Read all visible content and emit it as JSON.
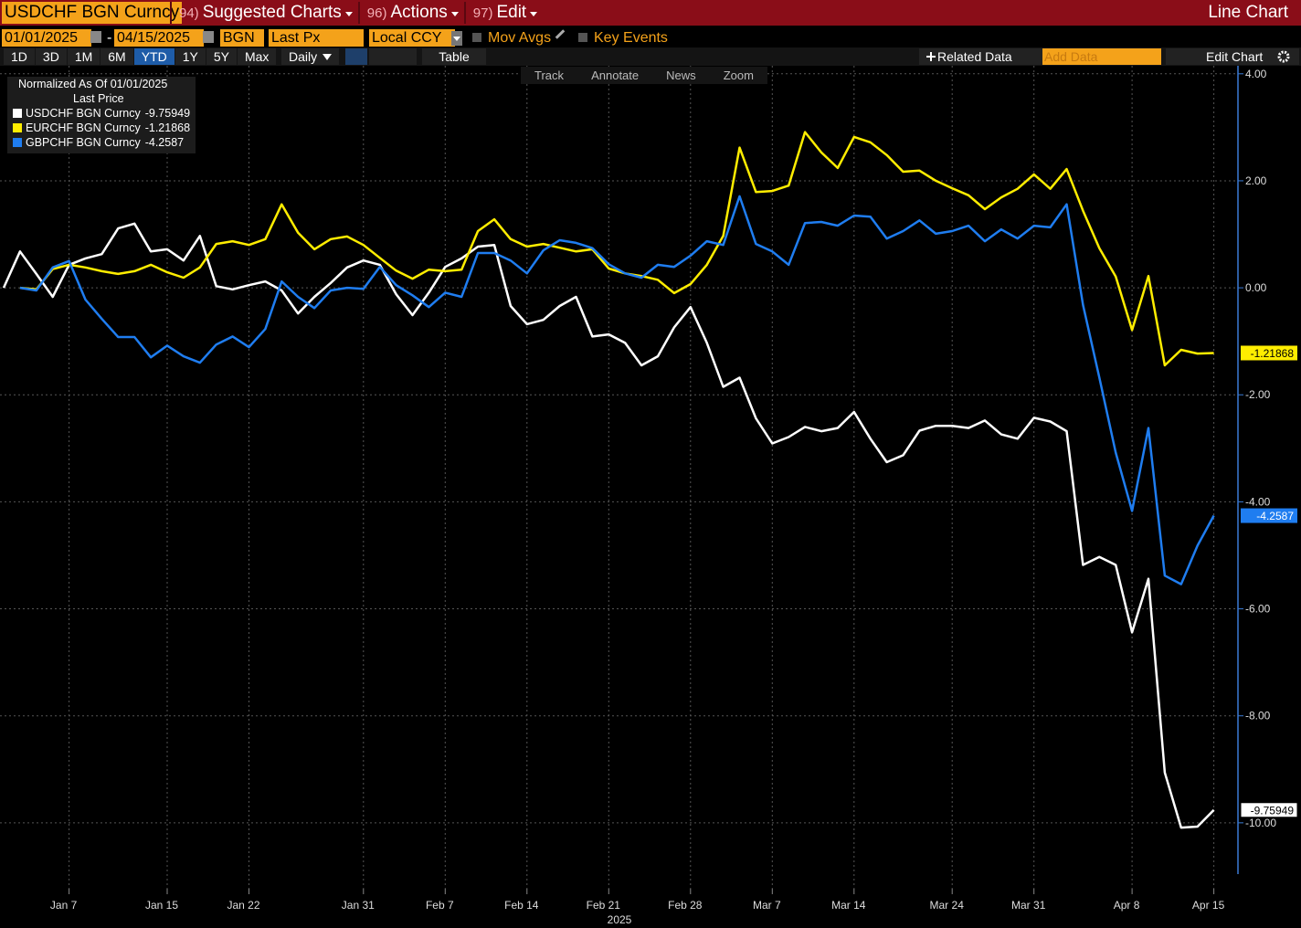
{
  "header": {
    "security": "USDCHF BGN Curncy",
    "menus": [
      {
        "key": "94)",
        "label": "Suggested Charts"
      },
      {
        "key": "96)",
        "label": "Actions"
      },
      {
        "key": "97)",
        "label": "Edit"
      }
    ],
    "view": "Line Chart"
  },
  "settings": {
    "start_date": "01/01/2025",
    "separator": "-",
    "end_date": "04/15/2025",
    "source": "BGN",
    "field": "Last Px",
    "currency": "Local CCY",
    "options": [
      "Mov Avgs",
      "Key Events"
    ]
  },
  "toolbar": {
    "periods": [
      "1D",
      "3D",
      "1M",
      "6M",
      "YTD",
      "1Y",
      "5Y",
      "Max"
    ],
    "active_period": 4,
    "frequency": "Daily",
    "table": "Table",
    "related": "Related Data",
    "add_data": "Add Data",
    "edit": "Edit Chart"
  },
  "chart_tools": [
    "Track",
    "Annotate",
    "News",
    "Zoom"
  ],
  "chart_data": {
    "type": "line",
    "legend_title": "Normalized As Of 01/01/2025",
    "legend_subtitle": "Last Price",
    "xlabel": "2025",
    "categories": [
      "2025-01-01",
      "2025-01-02",
      "2025-01-03",
      "2025-01-06",
      "2025-01-07",
      "2025-01-08",
      "2025-01-09",
      "2025-01-10",
      "2025-01-13",
      "2025-01-14",
      "2025-01-15",
      "2025-01-16",
      "2025-01-17",
      "2025-01-20",
      "2025-01-21",
      "2025-01-22",
      "2025-01-23",
      "2025-01-24",
      "2025-01-27",
      "2025-01-28",
      "2025-01-29",
      "2025-01-30",
      "2025-01-31",
      "2025-02-03",
      "2025-02-04",
      "2025-02-05",
      "2025-02-06",
      "2025-02-07",
      "2025-02-10",
      "2025-02-11",
      "2025-02-12",
      "2025-02-13",
      "2025-02-14",
      "2025-02-17",
      "2025-02-18",
      "2025-02-19",
      "2025-02-20",
      "2025-02-21",
      "2025-02-24",
      "2025-02-25",
      "2025-02-26",
      "2025-02-27",
      "2025-02-28",
      "2025-03-03",
      "2025-03-04",
      "2025-03-05",
      "2025-03-06",
      "2025-03-07",
      "2025-03-10",
      "2025-03-11",
      "2025-03-12",
      "2025-03-13",
      "2025-03-14",
      "2025-03-17",
      "2025-03-18",
      "2025-03-19",
      "2025-03-20",
      "2025-03-21",
      "2025-03-24",
      "2025-03-25",
      "2025-03-26",
      "2025-03-27",
      "2025-03-28",
      "2025-03-31",
      "2025-04-01",
      "2025-04-02",
      "2025-04-03",
      "2025-04-04",
      "2025-04-07",
      "2025-04-08",
      "2025-04-09",
      "2025-04-10",
      "2025-04-11",
      "2025-04-14",
      "2025-04-15"
    ],
    "xticks": [
      {
        "value": "2025-01-07",
        "label": "Jan 7"
      },
      {
        "value": "2025-01-15",
        "label": "Jan 15"
      },
      {
        "value": "2025-01-22",
        "label": "Jan 22"
      },
      {
        "value": "2025-01-31",
        "label": "Jan 31"
      },
      {
        "value": "2025-02-07",
        "label": "Feb 7"
      },
      {
        "value": "2025-02-14",
        "label": "Feb 14"
      },
      {
        "value": "2025-02-21",
        "label": "Feb 21"
      },
      {
        "value": "2025-02-28",
        "label": "Feb 28"
      },
      {
        "value": "2025-03-07",
        "label": "Mar 7"
      },
      {
        "value": "2025-03-14",
        "label": "Mar 14"
      },
      {
        "value": "2025-03-24",
        "label": "Mar 24"
      },
      {
        "value": "2025-03-31",
        "label": "Mar 31"
      },
      {
        "value": "2025-04-08",
        "label": "Apr 8"
      },
      {
        "value": "2025-04-15",
        "label": "Apr 15"
      }
    ],
    "ylim": [
      -11.3,
      4.15
    ],
    "yticks": [
      {
        "value": 4,
        "label": "4.00"
      },
      {
        "value": 2,
        "label": "2.00"
      },
      {
        "value": 0,
        "label": "0.00"
      },
      {
        "value": -2,
        "label": "-2.00"
      },
      {
        "value": -4,
        "label": "-4.00"
      },
      {
        "value": -6,
        "label": "-6.00"
      },
      {
        "value": -8,
        "label": "-8.00"
      },
      {
        "value": -10,
        "label": "-10.00"
      }
    ],
    "y_axis_side": "right",
    "grid": true,
    "series": [
      {
        "name": "USDCHF BGN Curncy",
        "color": "#ffffff",
        "values": [
          0,
          0.68,
          0.26,
          -0.17,
          0.43,
          0.55,
          0.63,
          1.11,
          1.2,
          0.68,
          0.72,
          0.51,
          0.97,
          0.03,
          -0.03,
          0.05,
          0.12,
          -0.05,
          -0.48,
          -0.17,
          0.09,
          0.38,
          0.51,
          0.43,
          -0.12,
          -0.51,
          -0.09,
          0.39,
          0.55,
          0.77,
          0.8,
          -0.34,
          -0.68,
          -0.6,
          -0.34,
          -0.17,
          -0.91,
          -0.87,
          -1.03,
          -1.45,
          -1.28,
          -0.74,
          -0.36,
          -1.03,
          -1.85,
          -1.68,
          -2.44,
          -2.91,
          -2.79,
          -2.6,
          -2.68,
          -2.62,
          -2.32,
          -2.82,
          -3.26,
          -3.13,
          -2.67,
          -2.58,
          -2.58,
          -2.62,
          -2.48,
          -2.74,
          -2.82,
          -2.43,
          -2.5,
          -2.68,
          -5.18,
          -5.03,
          -5.18,
          -6.44,
          -5.44,
          -9.06,
          -10.09,
          -10.07,
          -9.75949
        ]
      },
      {
        "name": "EURCHF BGN Curncy",
        "color": "#ffed00",
        "values": [
          null,
          0,
          -0.03,
          0.35,
          0.43,
          0.38,
          0.31,
          0.26,
          0.31,
          0.43,
          0.29,
          0.19,
          0.38,
          0.82,
          0.87,
          0.8,
          0.91,
          1.56,
          1.03,
          0.72,
          0.91,
          0.96,
          0.8,
          0.56,
          0.32,
          0.17,
          0.34,
          0.31,
          0.34,
          1.06,
          1.28,
          0.91,
          0.77,
          0.82,
          0.75,
          0.68,
          0.72,
          0.36,
          0.27,
          0.22,
          0.15,
          -0.1,
          0.07,
          0.43,
          0.97,
          2.62,
          1.79,
          1.81,
          1.91,
          2.91,
          2.53,
          2.24,
          2.82,
          2.72,
          2.48,
          2.17,
          2.19,
          2.0,
          1.86,
          1.73,
          1.47,
          1.69,
          1.85,
          2.12,
          1.85,
          2.22,
          1.44,
          0.74,
          0.21,
          -0.79,
          0.22,
          -1.45,
          -1.16,
          -1.23,
          -1.21868
        ]
      },
      {
        "name": "GBPCHF BGN Curncy",
        "color": "#1f7df0",
        "values": [
          null,
          0,
          -0.05,
          0.38,
          0.5,
          -0.22,
          -0.58,
          -0.92,
          -0.92,
          -1.3,
          -1.08,
          -1.28,
          -1.4,
          -1.06,
          -0.91,
          -1.11,
          -0.77,
          0.12,
          -0.17,
          -0.38,
          -0.05,
          0,
          -0.02,
          0.39,
          0.05,
          -0.14,
          -0.36,
          -0.09,
          -0.17,
          0.65,
          0.65,
          0.51,
          0.27,
          0.7,
          0.89,
          0.84,
          0.74,
          0.44,
          0.27,
          0.19,
          0.43,
          0.39,
          0.6,
          0.87,
          0.8,
          1.71,
          0.82,
          0.68,
          0.43,
          1.21,
          1.23,
          1.16,
          1.35,
          1.33,
          0.92,
          1.06,
          1.26,
          1.01,
          1.06,
          1.16,
          0.87,
          1.09,
          0.92,
          1.16,
          1.13,
          1.56,
          -0.32,
          -1.68,
          -3.08,
          -4.17,
          -2.62,
          -5.38,
          -5.54,
          -4.82,
          -4.2587
        ]
      }
    ]
  }
}
